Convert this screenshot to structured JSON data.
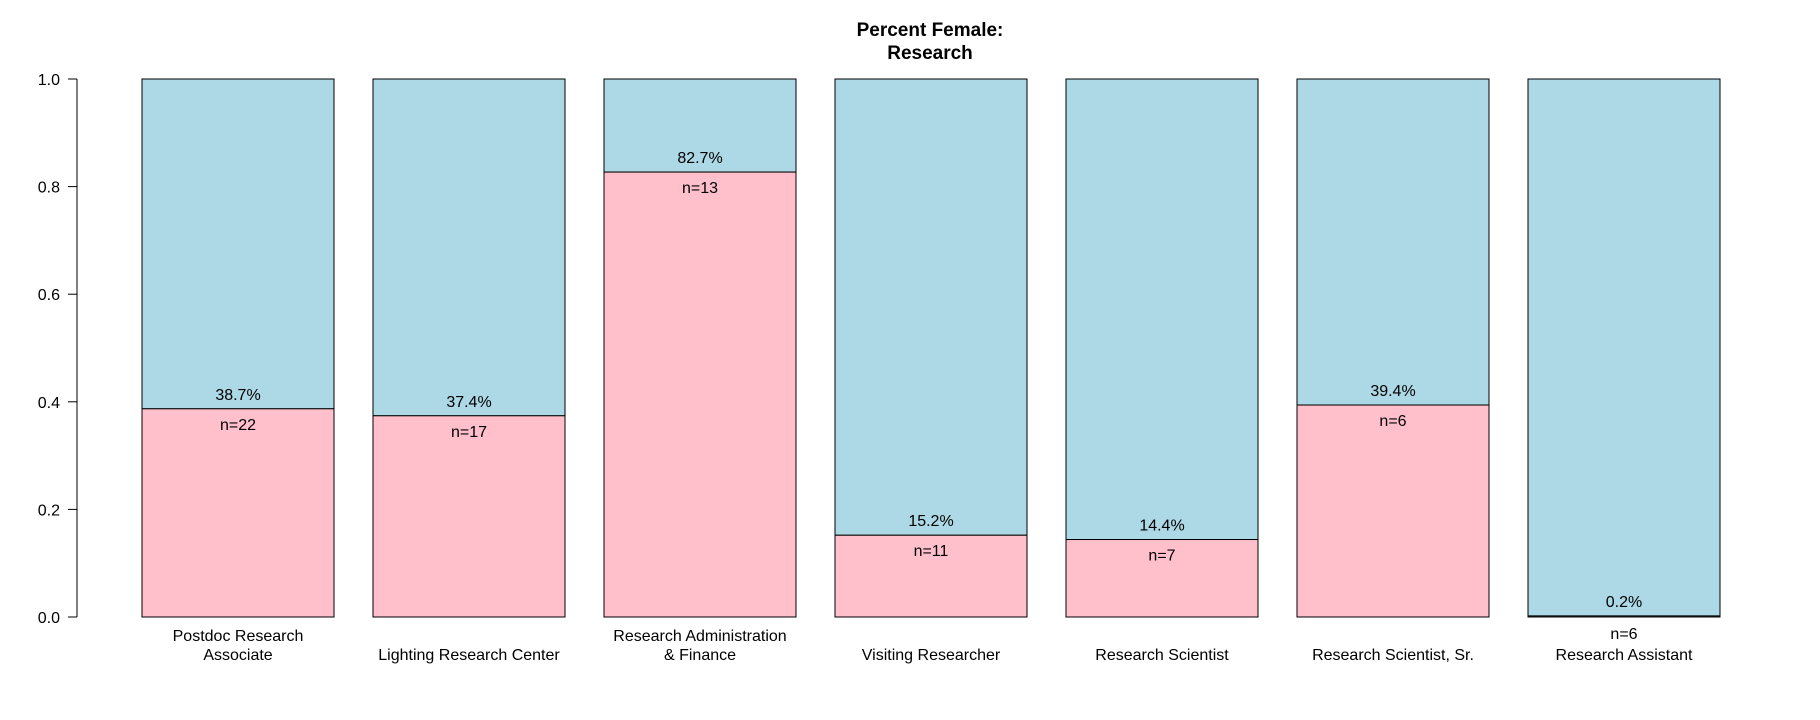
{
  "chart_data": {
    "type": "bar",
    "stacked": true,
    "title_lines": [
      "Percent Female:",
      "Research"
    ],
    "ylim": [
      0,
      1
    ],
    "yticks": [
      "0.0",
      "0.2",
      "0.4",
      "0.6",
      "0.8",
      "1.0"
    ],
    "ytick_values": [
      0,
      0.2,
      0.4,
      0.6,
      0.8,
      1.0
    ],
    "grid": false,
    "colors": {
      "female": "#FFC0CB",
      "remainder": "#ADD8E6",
      "outline": "#000000"
    },
    "bars": [
      {
        "label_lines": [
          "Postdoc Research",
          "Associate"
        ],
        "value": 0.387,
        "pct_label": "38.7%",
        "n_label": "n=22"
      },
      {
        "label_lines": [
          "Lighting Research Center"
        ],
        "value": 0.374,
        "pct_label": "37.4%",
        "n_label": "n=17"
      },
      {
        "label_lines": [
          "Research Administration",
          "& Finance"
        ],
        "value": 0.827,
        "pct_label": "82.7%",
        "n_label": "n=13"
      },
      {
        "label_lines": [
          "Visiting Researcher"
        ],
        "value": 0.152,
        "pct_label": "15.2%",
        "n_label": "n=11"
      },
      {
        "label_lines": [
          "Research Scientist"
        ],
        "value": 0.144,
        "pct_label": "14.4%",
        "n_label": "n=7"
      },
      {
        "label_lines": [
          "Research Scientist, Sr."
        ],
        "value": 0.394,
        "pct_label": "39.4%",
        "n_label": "n=6"
      },
      {
        "label_lines": [
          "Research Assistant"
        ],
        "value": 0.002,
        "pct_label": "0.2%",
        "n_label": "n=6"
      }
    ]
  }
}
